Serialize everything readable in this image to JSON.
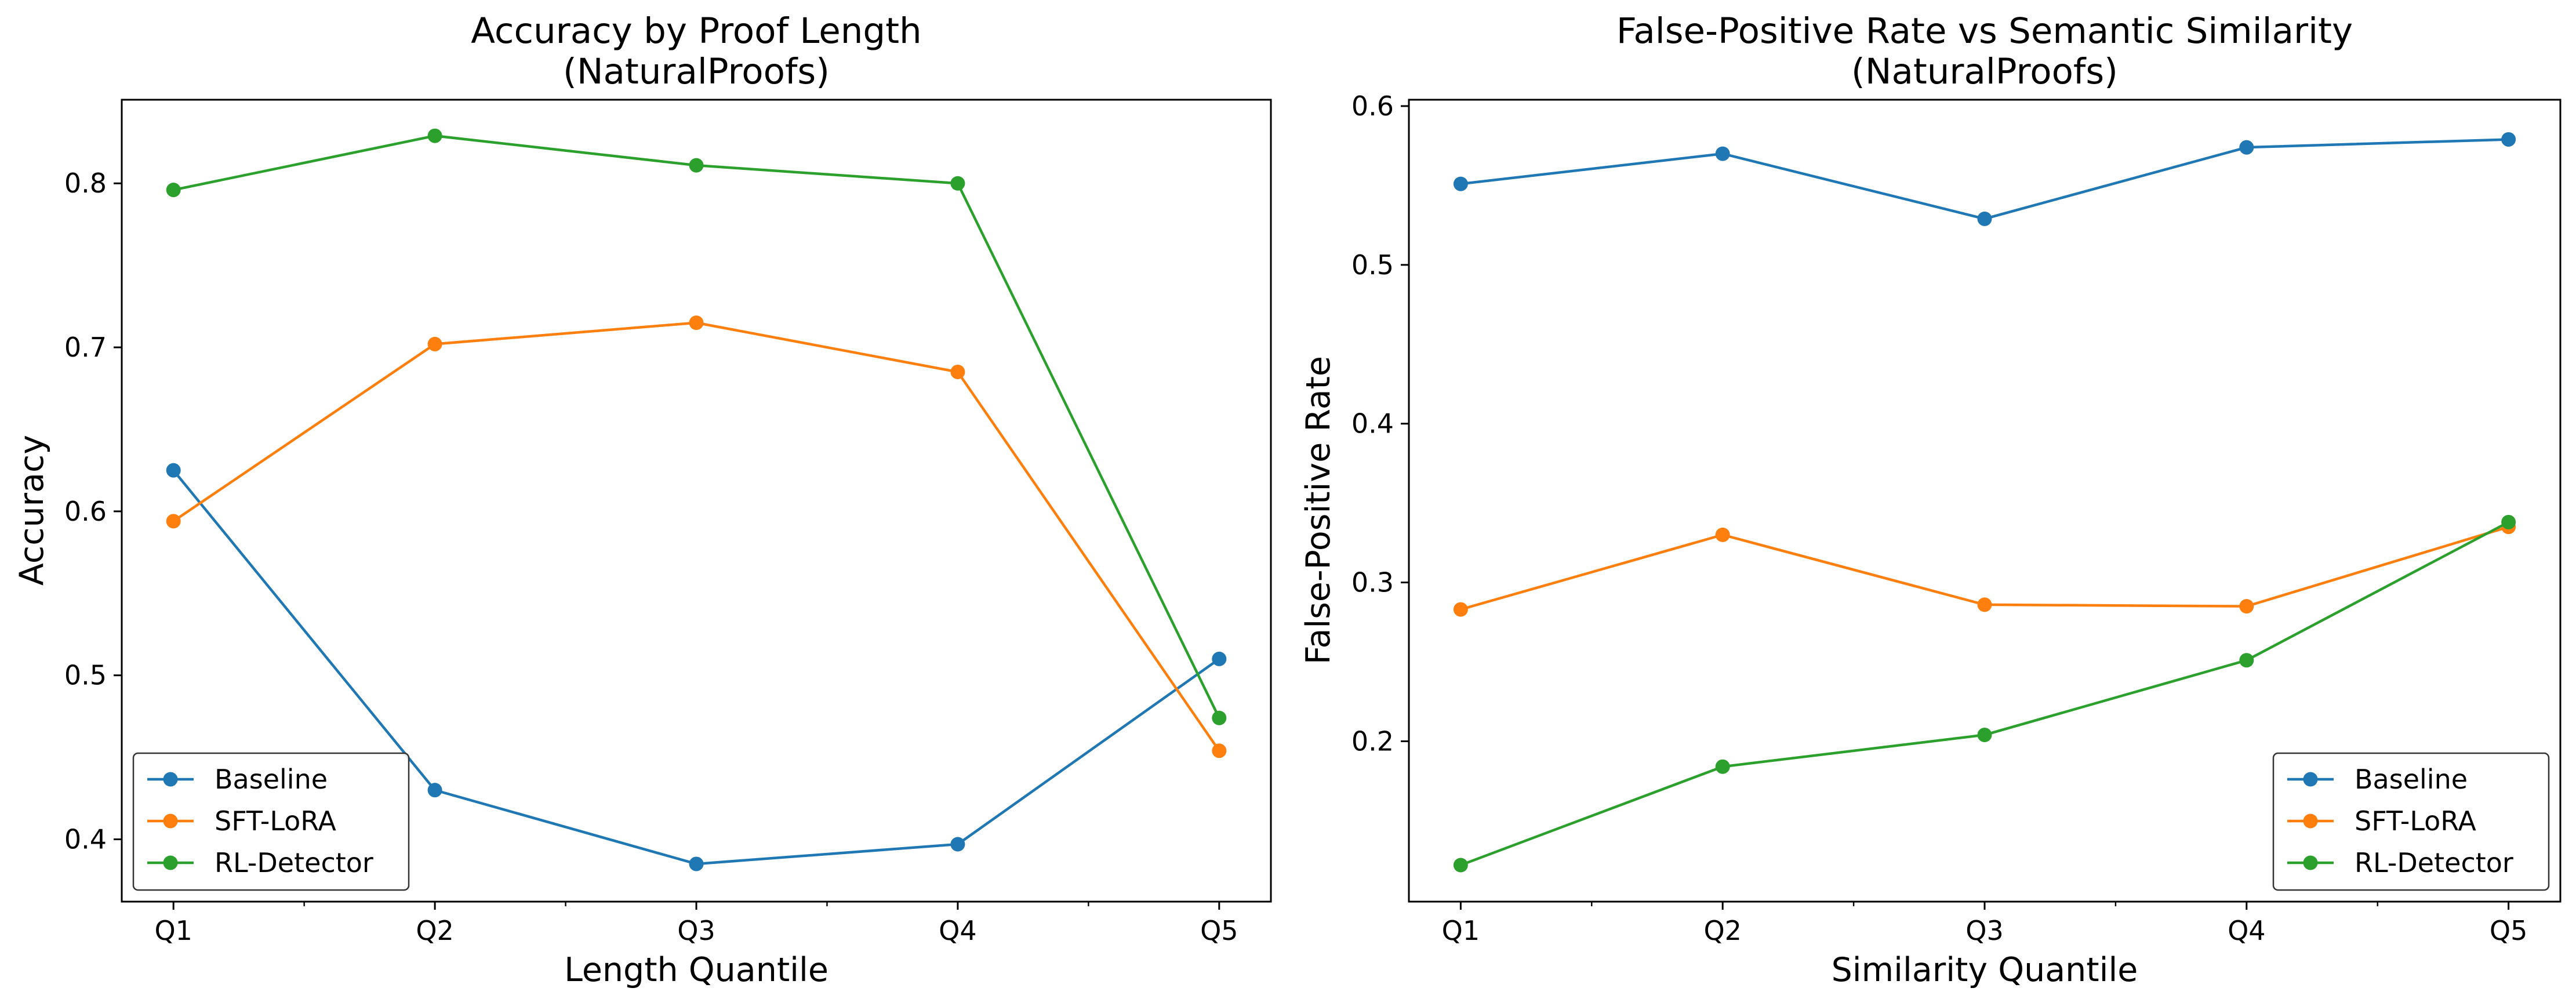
{
  "chart_data": [
    {
      "type": "line",
      "title": "Accuracy by Proof Length",
      "subtitle": "(NaturalProofs)",
      "xlabel": "Length Quantile",
      "ylabel": "Accuracy",
      "categories": [
        "Q1",
        "Q2",
        "Q3",
        "Q4",
        "Q5"
      ],
      "ylim": [
        0.362,
        0.851
      ],
      "yticks": [
        "0.4",
        "0.5",
        "0.6",
        "0.7",
        "0.8"
      ],
      "grid": false,
      "legend": "lower left",
      "series": [
        {
          "name": "Baseline",
          "color": "#1f77b4",
          "values": [
            0.625,
            0.43,
            0.385,
            0.397,
            0.51
          ]
        },
        {
          "name": "SFT-LoRA",
          "color": "#ff7f0e",
          "values": [
            0.594,
            0.702,
            0.715,
            0.685,
            0.454
          ]
        },
        {
          "name": "RL-Detector",
          "color": "#2ca02c",
          "values": [
            0.796,
            0.829,
            0.811,
            0.8,
            0.474
          ]
        }
      ]
    },
    {
      "type": "line",
      "title": "False-Positive Rate vs Semantic Similarity",
      "subtitle": "(NaturalProofs)",
      "xlabel": "Similarity Quantile",
      "ylabel": "False-Positive Rate",
      "categories": [
        "Q1",
        "Q2",
        "Q3",
        "Q4",
        "Q5"
      ],
      "ylim": [
        0.099,
        0.604
      ],
      "yticks": [
        "0.2",
        "0.3",
        "0.4",
        "0.5",
        "0.6"
      ],
      "grid": false,
      "legend": "lower right",
      "series": [
        {
          "name": "Baseline",
          "color": "#1f77b4",
          "values": [
            0.551,
            0.57,
            0.529,
            0.574,
            0.579
          ]
        },
        {
          "name": "SFT-LoRA",
          "color": "#ff7f0e",
          "values": [
            0.283,
            0.33,
            0.286,
            0.285,
            0.335
          ]
        },
        {
          "name": "RL-Detector",
          "color": "#2ca02c",
          "values": [
            0.122,
            0.184,
            0.204,
            0.251,
            0.338
          ]
        }
      ]
    }
  ]
}
